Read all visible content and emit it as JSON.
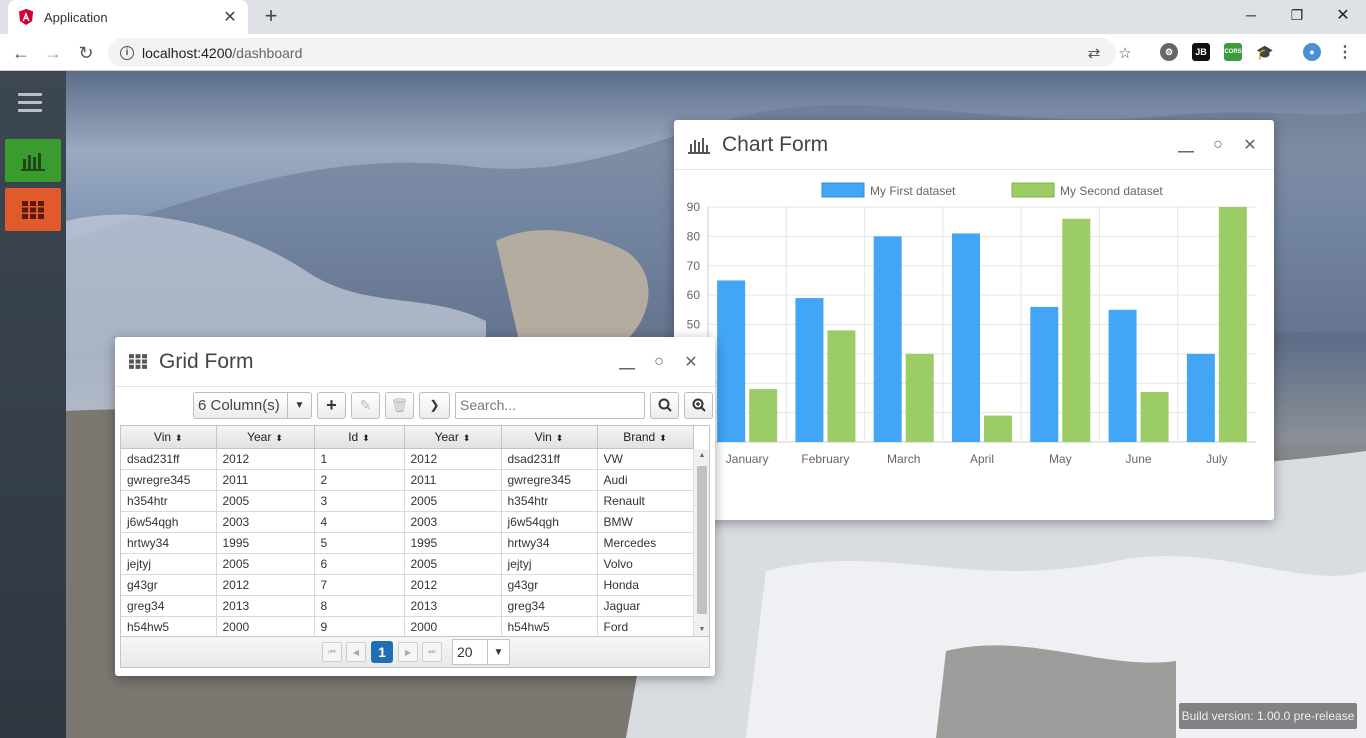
{
  "browser": {
    "tab_title": "Application",
    "url_host": "localhost:4200",
    "url_path": "/dashboard",
    "ext_labels": [
      "JB",
      "CORS"
    ]
  },
  "sidebar": {
    "items": [
      {
        "name": "chart",
        "color": "#3a9b2f"
      },
      {
        "name": "grid",
        "color": "#e05a2b"
      }
    ]
  },
  "chart_window": {
    "title": "Chart Form"
  },
  "chart_data": {
    "type": "bar",
    "title": "",
    "categories": [
      "January",
      "February",
      "March",
      "April",
      "May",
      "June",
      "July"
    ],
    "series": [
      {
        "name": "My First dataset",
        "color": "#42a5f5",
        "values": [
          65,
          59,
          80,
          81,
          56,
          55,
          40
        ]
      },
      {
        "name": "My Second dataset",
        "color": "#9ccc65",
        "values": [
          28,
          48,
          40,
          19,
          86,
          27,
          90
        ]
      }
    ],
    "yticks": [
      90,
      80,
      70,
      60,
      50
    ],
    "ylim": [
      10,
      90
    ],
    "legend": "top",
    "grid": true
  },
  "grid_window": {
    "title": "Grid Form",
    "columns_label": "6 Column(s)",
    "search_placeholder": "Search...",
    "headers": [
      "Vin",
      "Year",
      "Id",
      "Year",
      "Vin",
      "Brand"
    ],
    "rows": [
      [
        "dsad231ff",
        "2012",
        "1",
        "2012",
        "dsad231ff",
        "VW"
      ],
      [
        "gwregre345",
        "2011",
        "2",
        "2011",
        "gwregre345",
        "Audi"
      ],
      [
        "h354htr",
        "2005",
        "3",
        "2005",
        "h354htr",
        "Renault"
      ],
      [
        "j6w54qgh",
        "2003",
        "4",
        "2003",
        "j6w54qgh",
        "BMW"
      ],
      [
        "hrtwy34",
        "1995",
        "5",
        "1995",
        "hrtwy34",
        "Mercedes"
      ],
      [
        "jejtyj",
        "2005",
        "6",
        "2005",
        "jejtyj",
        "Volvo"
      ],
      [
        "g43gr",
        "2012",
        "7",
        "2012",
        "g43gr",
        "Honda"
      ],
      [
        "greg34",
        "2013",
        "8",
        "2013",
        "greg34",
        "Jaguar"
      ],
      [
        "h54hw5",
        "2000",
        "9",
        "2000",
        "h54hw5",
        "Ford"
      ]
    ],
    "current_page": "1",
    "page_size": "20"
  },
  "build_version": "Build version: 1.00.0 pre-release"
}
